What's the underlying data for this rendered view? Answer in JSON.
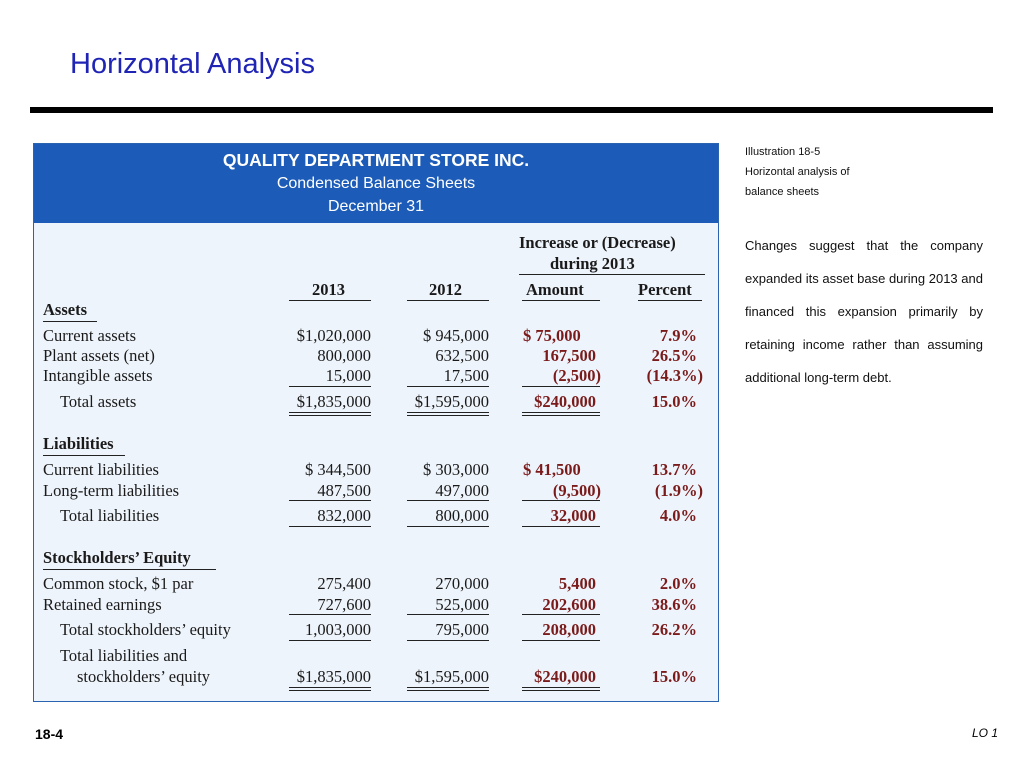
{
  "slide": {
    "title": "Horizontal Analysis",
    "page_number": "18-4",
    "lo": "LO 1"
  },
  "header": {
    "company": "QUALITY DEPARTMENT STORE INC.",
    "statement": "Condensed Balance Sheets",
    "date": "December 31"
  },
  "columns": {
    "group_label_1": "Increase or (Decrease)",
    "group_label_2": "during 2013",
    "y2013": "2013",
    "y2012": "2012",
    "amount": "Amount",
    "percent": "Percent"
  },
  "sections": {
    "assets": "Assets",
    "liabilities": "Liabilities",
    "equity": "Stockholders’ Equity"
  },
  "rows": [
    {
      "label": "Current assets",
      "c2013": "$1,020,000",
      "c2012": "$    945,000",
      "amount": "$  75,000",
      "percent": "7.9%"
    },
    {
      "label": "Plant assets (net)",
      "c2013": "800,000",
      "c2012": "632,500",
      "amount": "167,500",
      "percent": "26.5%"
    },
    {
      "label": "Intangible assets",
      "c2013": "15,000",
      "c2012": "17,500",
      "amount": "(2,500)",
      "percent": "(14.3%)"
    },
    {
      "label": "Total assets",
      "c2013": "$1,835,000",
      "c2012": "$1,595,000",
      "amount": "$240,000",
      "percent": "15.0%"
    },
    {
      "label": "Current liabilities",
      "c2013": "$    344,500",
      "c2012": "$    303,000",
      "amount": "$  41,500",
      "percent": "13.7%"
    },
    {
      "label": "Long-term liabilities",
      "c2013": "487,500",
      "c2012": "497,000",
      "amount": "(9,500)",
      "percent": "(1.9%)"
    },
    {
      "label": "Total liabilities",
      "c2013": "832,000",
      "c2012": "800,000",
      "amount": "32,000",
      "percent": "4.0%"
    },
    {
      "label": "Common stock, $1 par",
      "c2013": "275,400",
      "c2012": "270,000",
      "amount": "5,400",
      "percent": "2.0%"
    },
    {
      "label": "Retained earnings",
      "c2013": "727,600",
      "c2012": "525,000",
      "amount": "202,600",
      "percent": "38.6%"
    },
    {
      "label": "Total stockholders’ equity",
      "c2013": "1,003,000",
      "c2012": "795,000",
      "amount": "208,000",
      "percent": "26.2%"
    },
    {
      "label": "Total liabilities and",
      "label2": "stockholders’ equity",
      "c2013": "$1,835,000",
      "c2012": "$1,595,000",
      "amount": "$240,000",
      "percent": "15.0%"
    }
  ],
  "sidebar": {
    "caption_1": "Illustration 18-5",
    "caption_2": "Horizontal analysis of",
    "caption_3": "balance sheets",
    "text": "Changes suggest that the company expanded its asset base during 2013 and financed this expansion primarily by retaining income rather than assuming additional long-term debt."
  }
}
